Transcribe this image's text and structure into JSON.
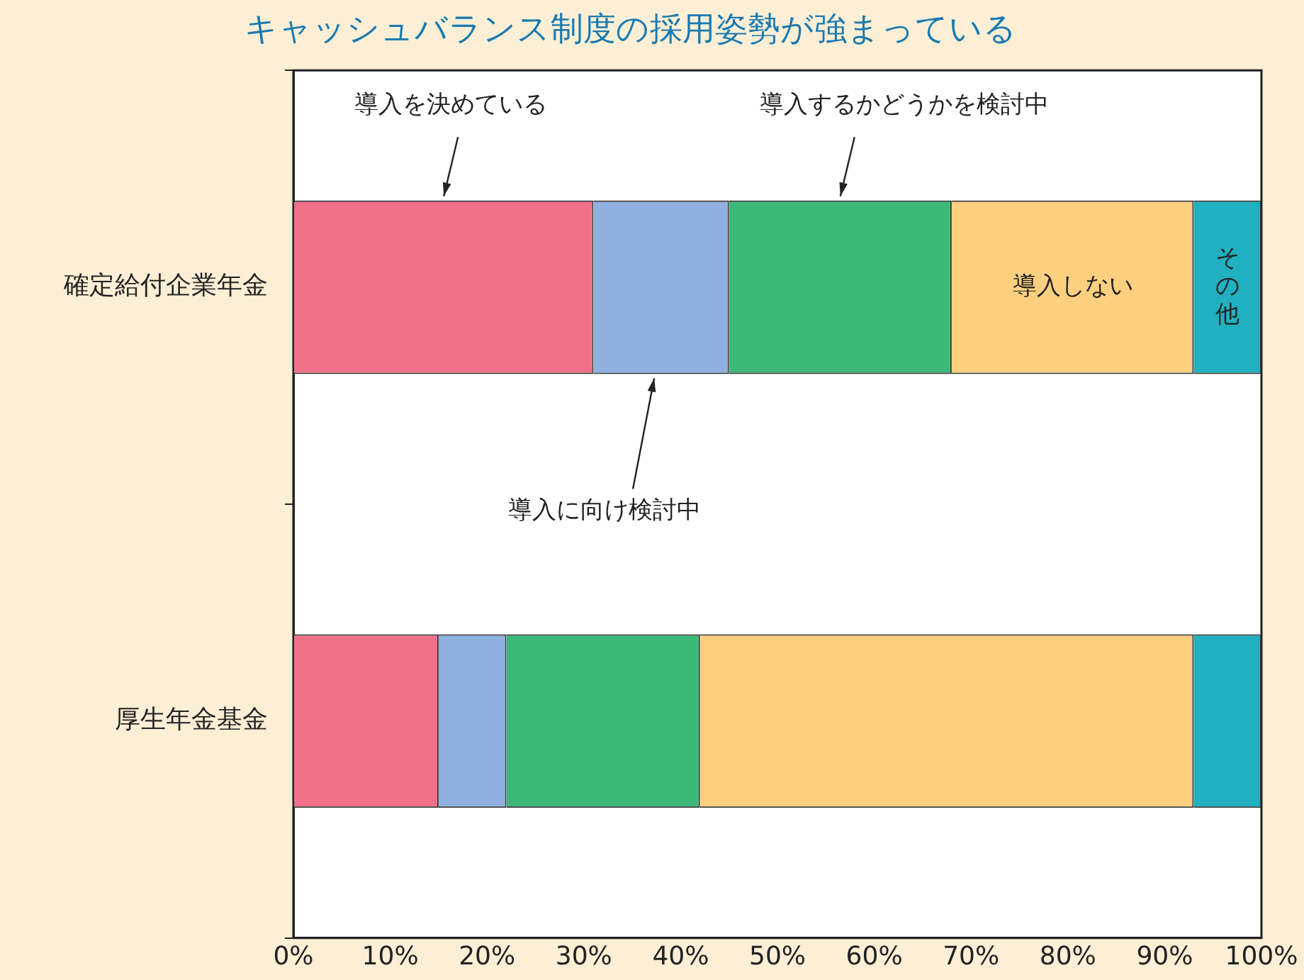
{
  "chart_data": {
    "type": "bar",
    "orientation": "horizontal",
    "stacked": true,
    "title": "キャッシュバランス制度の採用姿勢が強まっている",
    "categories": [
      "確定給付企業年金",
      "厚生年金基金"
    ],
    "series": [
      {
        "name": "導入を決めている",
        "color": "#ef7088",
        "values": [
          31,
          15
        ]
      },
      {
        "name": "導入に向け検討中",
        "color": "#8fb0e0",
        "values": [
          14,
          7
        ]
      },
      {
        "name": "導入するかどうかを検討中",
        "color": "#3cb878",
        "values": [
          23,
          20
        ]
      },
      {
        "name": "導入しない",
        "color": "#fdd080",
        "values": [
          25,
          51
        ]
      },
      {
        "name": "その他",
        "color": "#20b0c0",
        "values": [
          7,
          7
        ]
      }
    ],
    "xlim": [
      0,
      100
    ],
    "xticks": [
      {
        "value": 0,
        "label": "0%"
      },
      {
        "value": 10,
        "label": "10%"
      },
      {
        "value": 20,
        "label": "20%"
      },
      {
        "value": 30,
        "label": "30%"
      },
      {
        "value": 40,
        "label": "40%"
      },
      {
        "value": 50,
        "label": "50%"
      },
      {
        "value": 60,
        "label": "60%"
      },
      {
        "value": 70,
        "label": "70%"
      },
      {
        "value": 80,
        "label": "80%"
      },
      {
        "value": 90,
        "label": "90%"
      },
      {
        "value": 100,
        "label": "100%"
      }
    ],
    "grid": false,
    "legend": false
  }
}
